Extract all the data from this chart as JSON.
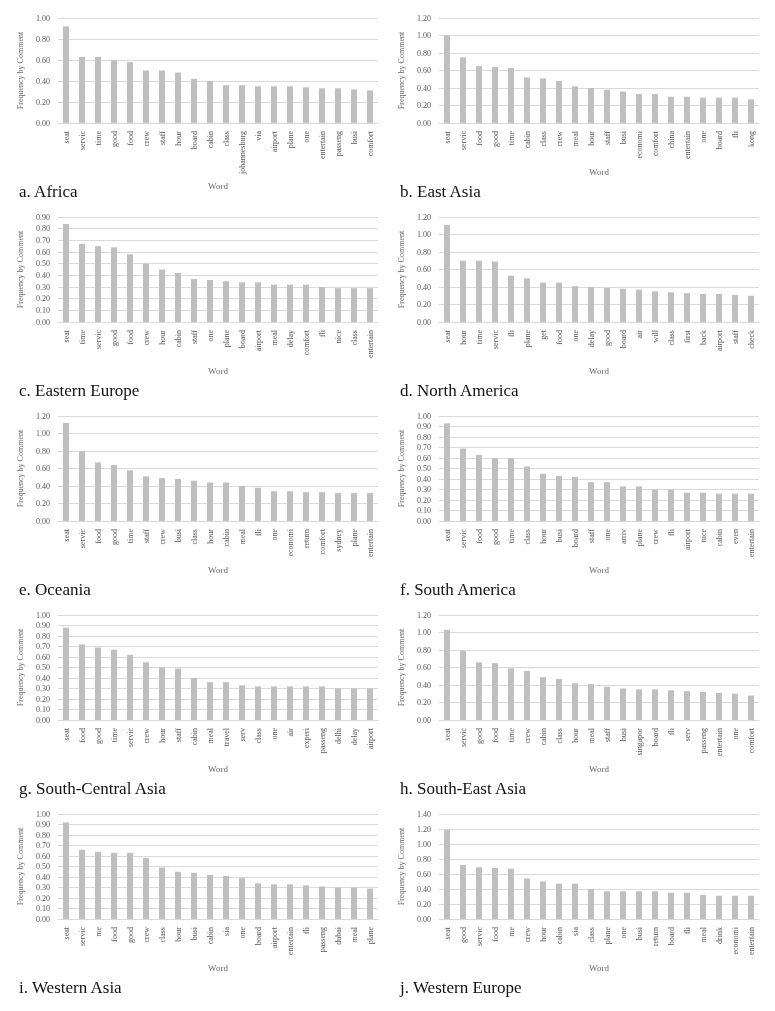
{
  "chart_data": [
    {
      "type": "bar",
      "title": "a. Africa",
      "xlabel": "Word",
      "ylabel": "Frequency by Comment",
      "color": "#bfbfbf",
      "grid": "y",
      "ylim": [
        0,
        1
      ],
      "yticks": [
        {
          "value": 0,
          "label": "0.00"
        },
        {
          "value": 0.2,
          "label": "0.20"
        },
        {
          "value": 0.4,
          "label": "0.40"
        },
        {
          "value": 0.6,
          "label": "0.60"
        },
        {
          "value": 0.8,
          "label": "0.80"
        },
        {
          "value": 1,
          "label": "1.00"
        }
      ],
      "categories": [
        "seat",
        "servic",
        "time",
        "good",
        "food",
        "crew",
        "staff",
        "hour",
        "board",
        "cabin",
        "class",
        "johannesburg",
        "via",
        "airport",
        "plane",
        "one",
        "entertain",
        "passeng",
        "busi",
        "comfort"
      ],
      "values": [
        0.92,
        0.63,
        0.63,
        0.6,
        0.58,
        0.5,
        0.5,
        0.48,
        0.42,
        0.4,
        0.36,
        0.36,
        0.35,
        0.35,
        0.35,
        0.34,
        0.33,
        0.33,
        0.32,
        0.31
      ]
    },
    {
      "type": "bar",
      "title": "b. East Asia",
      "xlabel": "Word",
      "ylabel": "Frequency by Comment",
      "color": "#bfbfbf",
      "grid": "y",
      "ylim": [
        0,
        1.2
      ],
      "yticks": [
        {
          "value": 0,
          "label": "0.00"
        },
        {
          "value": 0.2,
          "label": "0.20"
        },
        {
          "value": 0.4,
          "label": "0.40"
        },
        {
          "value": 0.6,
          "label": "0.60"
        },
        {
          "value": 0.8,
          "label": "0.80"
        },
        {
          "value": 1,
          "label": "1.00"
        },
        {
          "value": 1.2,
          "label": "1.20"
        }
      ],
      "categories": [
        "seat",
        "servic",
        "food",
        "good",
        "time",
        "cabin",
        "class",
        "crew",
        "meal",
        "hour",
        "staff",
        "busi",
        "economi",
        "comfort",
        "china",
        "entertain",
        "one",
        "board",
        "fli",
        "kong"
      ],
      "values": [
        1.0,
        0.75,
        0.65,
        0.64,
        0.63,
        0.52,
        0.51,
        0.48,
        0.42,
        0.4,
        0.38,
        0.36,
        0.33,
        0.33,
        0.3,
        0.3,
        0.29,
        0.29,
        0.29,
        0.27
      ]
    },
    {
      "type": "bar",
      "title": "c. Eastern Europe",
      "xlabel": "Word",
      "ylabel": "Frequency by Comment",
      "color": "#bfbfbf",
      "grid": "y",
      "ylim": [
        0,
        0.9
      ],
      "yticks": [
        {
          "value": 0,
          "label": "0.00"
        },
        {
          "value": 0.1,
          "label": "0.10"
        },
        {
          "value": 0.2,
          "label": "0.20"
        },
        {
          "value": 0.3,
          "label": "0.30"
        },
        {
          "value": 0.4,
          "label": "0.40"
        },
        {
          "value": 0.5,
          "label": "0.50"
        },
        {
          "value": 0.6,
          "label": "0.60"
        },
        {
          "value": 0.7,
          "label": "0.70"
        },
        {
          "value": 0.8,
          "label": "0.80"
        },
        {
          "value": 0.9,
          "label": "0.90"
        }
      ],
      "categories": [
        "seat",
        "time",
        "servic",
        "good",
        "food",
        "crew",
        "hour",
        "cabin",
        "staff",
        "one",
        "plane",
        "board",
        "airport",
        "meal",
        "delay",
        "comfort",
        "fli",
        "nice",
        "class",
        "entertain"
      ],
      "values": [
        0.84,
        0.67,
        0.65,
        0.64,
        0.58,
        0.5,
        0.45,
        0.42,
        0.37,
        0.36,
        0.35,
        0.34,
        0.34,
        0.32,
        0.32,
        0.32,
        0.3,
        0.29,
        0.29,
        0.29
      ]
    },
    {
      "type": "bar",
      "title": "d. North America",
      "xlabel": "Word",
      "ylabel": "Frequency by Comment",
      "color": "#bfbfbf",
      "grid": "y",
      "ylim": [
        0,
        1.2
      ],
      "yticks": [
        {
          "value": 0,
          "label": "0.00"
        },
        {
          "value": 0.2,
          "label": "0.20"
        },
        {
          "value": 0.4,
          "label": "0.40"
        },
        {
          "value": 0.6,
          "label": "0.60"
        },
        {
          "value": 0.8,
          "label": "0.80"
        },
        {
          "value": 1,
          "label": "1.00"
        },
        {
          "value": 1.2,
          "label": "1.20"
        }
      ],
      "categories": [
        "seat",
        "hour",
        "time",
        "servic",
        "fli",
        "plane",
        "get",
        "food",
        "one",
        "delay",
        "good",
        "board",
        "air",
        "will",
        "class",
        "first",
        "back",
        "airport",
        "staff",
        "check"
      ],
      "values": [
        1.11,
        0.7,
        0.7,
        0.69,
        0.53,
        0.5,
        0.45,
        0.45,
        0.41,
        0.4,
        0.39,
        0.38,
        0.37,
        0.35,
        0.34,
        0.33,
        0.32,
        0.32,
        0.31,
        0.3
      ]
    },
    {
      "type": "bar",
      "title": "e. Oceania",
      "xlabel": "Word",
      "ylabel": "Frequency by Comment",
      "color": "#bfbfbf",
      "grid": "y",
      "ylim": [
        0,
        1.2
      ],
      "yticks": [
        {
          "value": 0,
          "label": "0.00"
        },
        {
          "value": 0.2,
          "label": "0.20"
        },
        {
          "value": 0.4,
          "label": "0.40"
        },
        {
          "value": 0.6,
          "label": "0.60"
        },
        {
          "value": 0.8,
          "label": "0.80"
        },
        {
          "value": 1,
          "label": "1.00"
        },
        {
          "value": 1.2,
          "label": "1.20"
        }
      ],
      "categories": [
        "seat",
        "servic",
        "food",
        "good",
        "time",
        "staff",
        "crew",
        "busi",
        "class",
        "hour",
        "cabin",
        "meal",
        "fli",
        "one",
        "economi",
        "return",
        "comfort",
        "sydney",
        "plane",
        "entertain"
      ],
      "values": [
        1.12,
        0.8,
        0.67,
        0.64,
        0.58,
        0.51,
        0.49,
        0.48,
        0.46,
        0.44,
        0.44,
        0.4,
        0.38,
        0.34,
        0.34,
        0.33,
        0.33,
        0.32,
        0.32,
        0.32
      ]
    },
    {
      "type": "bar",
      "title": "f. South America",
      "xlabel": "Word",
      "ylabel": "Frequency by Comment",
      "color": "#bfbfbf",
      "grid": "y",
      "ylim": [
        0,
        1
      ],
      "yticks": [
        {
          "value": 0,
          "label": "0.00"
        },
        {
          "value": 0.1,
          "label": "0.10"
        },
        {
          "value": 0.2,
          "label": "0.20"
        },
        {
          "value": 0.3,
          "label": "0.30"
        },
        {
          "value": 0.4,
          "label": "0.40"
        },
        {
          "value": 0.5,
          "label": "0.50"
        },
        {
          "value": 0.6,
          "label": "0.60"
        },
        {
          "value": 0.7,
          "label": "0.70"
        },
        {
          "value": 0.8,
          "label": "0.80"
        },
        {
          "value": 0.9,
          "label": "0.90"
        },
        {
          "value": 1,
          "label": "1.00"
        }
      ],
      "categories": [
        "seat",
        "servic",
        "food",
        "good",
        "time",
        "class",
        "hour",
        "busi",
        "board",
        "staff",
        "one",
        "arriv",
        "plane",
        "crew",
        "fli",
        "airport",
        "nice",
        "cabin",
        "even",
        "entertain"
      ],
      "values": [
        0.93,
        0.69,
        0.63,
        0.6,
        0.6,
        0.52,
        0.45,
        0.43,
        0.42,
        0.37,
        0.37,
        0.33,
        0.33,
        0.3,
        0.3,
        0.27,
        0.27,
        0.26,
        0.26,
        0.26
      ]
    },
    {
      "type": "bar",
      "title": "g. South-Central Asia",
      "xlabel": "Word",
      "ylabel": "Frequency by Comment",
      "color": "#bfbfbf",
      "grid": "y",
      "ylim": [
        0,
        1
      ],
      "yticks": [
        {
          "value": 0,
          "label": "0.00"
        },
        {
          "value": 0.1,
          "label": "0.10"
        },
        {
          "value": 0.2,
          "label": "0.20"
        },
        {
          "value": 0.3,
          "label": "0.30"
        },
        {
          "value": 0.4,
          "label": "0.40"
        },
        {
          "value": 0.5,
          "label": "0.50"
        },
        {
          "value": 0.6,
          "label": "0.60"
        },
        {
          "value": 0.7,
          "label": "0.70"
        },
        {
          "value": 0.8,
          "label": "0.80"
        },
        {
          "value": 0.9,
          "label": "0.90"
        },
        {
          "value": 1,
          "label": "1.00"
        }
      ],
      "categories": [
        "seat",
        "food",
        "good",
        "time",
        "servic",
        "crew",
        "hour",
        "staff",
        "cabin",
        "meal",
        "travel",
        "serv",
        "class",
        "one",
        "air",
        "experi",
        "passeng",
        "delhi",
        "delay",
        "airport"
      ],
      "values": [
        0.88,
        0.72,
        0.69,
        0.67,
        0.62,
        0.55,
        0.5,
        0.49,
        0.4,
        0.36,
        0.36,
        0.33,
        0.32,
        0.32,
        0.32,
        0.32,
        0.32,
        0.3,
        0.3,
        0.3
      ]
    },
    {
      "type": "bar",
      "title": "h. South-East Asia",
      "xlabel": "Word",
      "ylabel": "Frequency by Comment",
      "color": "#bfbfbf",
      "grid": "y",
      "ylim": [
        0,
        1.2
      ],
      "yticks": [
        {
          "value": 0,
          "label": "0.00"
        },
        {
          "value": 0.2,
          "label": "0.20"
        },
        {
          "value": 0.4,
          "label": "0.40"
        },
        {
          "value": 0.6,
          "label": "0.60"
        },
        {
          "value": 0.8,
          "label": "0.80"
        },
        {
          "value": 1,
          "label": "1.00"
        },
        {
          "value": 1.2,
          "label": "1.20"
        }
      ],
      "categories": [
        "seat",
        "servic",
        "good",
        "food",
        "time",
        "crew",
        "cabin",
        "class",
        "hour",
        "meal",
        "staff",
        "busi",
        "singapor",
        "board",
        "fli",
        "serv",
        "passeng",
        "entertain",
        "one",
        "comfort"
      ],
      "values": [
        1.03,
        0.79,
        0.66,
        0.65,
        0.59,
        0.56,
        0.49,
        0.47,
        0.42,
        0.41,
        0.38,
        0.36,
        0.35,
        0.35,
        0.34,
        0.33,
        0.32,
        0.31,
        0.3,
        0.28
      ]
    },
    {
      "type": "bar",
      "title": "i. Western Asia",
      "xlabel": "Word",
      "ylabel": "Frequency by Comment",
      "color": "#bfbfbf",
      "grid": "y",
      "ylim": [
        0,
        1
      ],
      "yticks": [
        {
          "value": 0,
          "label": "0.00"
        },
        {
          "value": 0.1,
          "label": "0.10"
        },
        {
          "value": 0.2,
          "label": "0.20"
        },
        {
          "value": 0.3,
          "label": "0.30"
        },
        {
          "value": 0.4,
          "label": "0.40"
        },
        {
          "value": 0.5,
          "label": "0.50"
        },
        {
          "value": 0.6,
          "label": "0.60"
        },
        {
          "value": 0.7,
          "label": "0.70"
        },
        {
          "value": 0.8,
          "label": "0.80"
        },
        {
          "value": 0.9,
          "label": "0.90"
        },
        {
          "value": 1,
          "label": "1.00"
        }
      ],
      "categories": [
        "seat",
        "servic",
        "me",
        "food",
        "good",
        "crew",
        "class",
        "hour",
        "busi",
        "cabin",
        "sia",
        "one",
        "board",
        "airport",
        "entertain",
        "fli",
        "passeng",
        "dubai",
        "meal",
        "plane"
      ],
      "values": [
        0.92,
        0.66,
        0.64,
        0.63,
        0.63,
        0.58,
        0.49,
        0.45,
        0.44,
        0.42,
        0.41,
        0.39,
        0.34,
        0.33,
        0.33,
        0.32,
        0.31,
        0.3,
        0.3,
        0.29
      ]
    },
    {
      "type": "bar",
      "title": "j. Western Europe",
      "xlabel": "Word",
      "ylabel": "Frequency by Comment",
      "color": "#bfbfbf",
      "grid": "y",
      "ylim": [
        0,
        1.4
      ],
      "yticks": [
        {
          "value": 0,
          "label": "0.00"
        },
        {
          "value": 0.2,
          "label": "0.20"
        },
        {
          "value": 0.4,
          "label": "0.40"
        },
        {
          "value": 0.6,
          "label": "0.60"
        },
        {
          "value": 0.8,
          "label": "0.80"
        },
        {
          "value": 1,
          "label": "1.00"
        },
        {
          "value": 1.2,
          "label": "1.20"
        },
        {
          "value": 1.4,
          "label": "1.40"
        }
      ],
      "categories": [
        "seat",
        "good",
        "servic",
        "food",
        "me",
        "crew",
        "hour",
        "cabin",
        "sia",
        "class",
        "plane",
        "one",
        "busi",
        "return",
        "board",
        "fli",
        "meal",
        "drink",
        "economi",
        "entertain"
      ],
      "values": [
        1.19,
        0.72,
        0.69,
        0.68,
        0.67,
        0.54,
        0.5,
        0.47,
        0.47,
        0.4,
        0.37,
        0.37,
        0.37,
        0.37,
        0.35,
        0.35,
        0.32,
        0.31,
        0.31,
        0.31
      ]
    }
  ]
}
